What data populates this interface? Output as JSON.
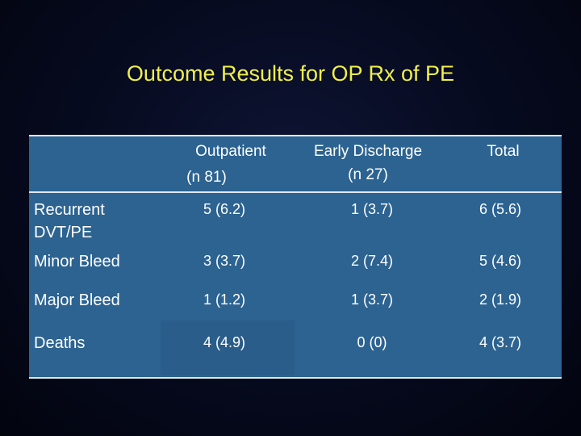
{
  "slide": {
    "title": "Outcome Results for OP Rx of PE"
  },
  "table": {
    "columns": [
      {
        "line1": "",
        "line2": ""
      },
      {
        "line1": "Outpatient",
        "line2": "(n 81)"
      },
      {
        "line1": "Early Discharge",
        "line2": "(n 27)"
      },
      {
        "line1": "Total",
        "line2": ""
      }
    ],
    "rows": [
      {
        "label_line1": "Recurrent",
        "label_line2": "DVT/PE",
        "outpatient": "5 (6.2)",
        "early_discharge": "1 (3.7)",
        "total": "6 (5.6)"
      },
      {
        "label_line1": "Minor Bleed",
        "label_line2": "",
        "outpatient": "3 (3.7)",
        "early_discharge": "2 (7.4)",
        "total": "5 (4.6)"
      },
      {
        "label_line1": "Major Bleed",
        "label_line2": "",
        "outpatient": "1 (1.2)",
        "early_discharge": "1 (3.7)",
        "total": "2 (1.9)"
      },
      {
        "label_line1": "Deaths",
        "label_line2": "",
        "outpatient": "4 (4.9)",
        "early_discharge": "0 (0)",
        "total": "4 (3.7)"
      }
    ]
  }
}
